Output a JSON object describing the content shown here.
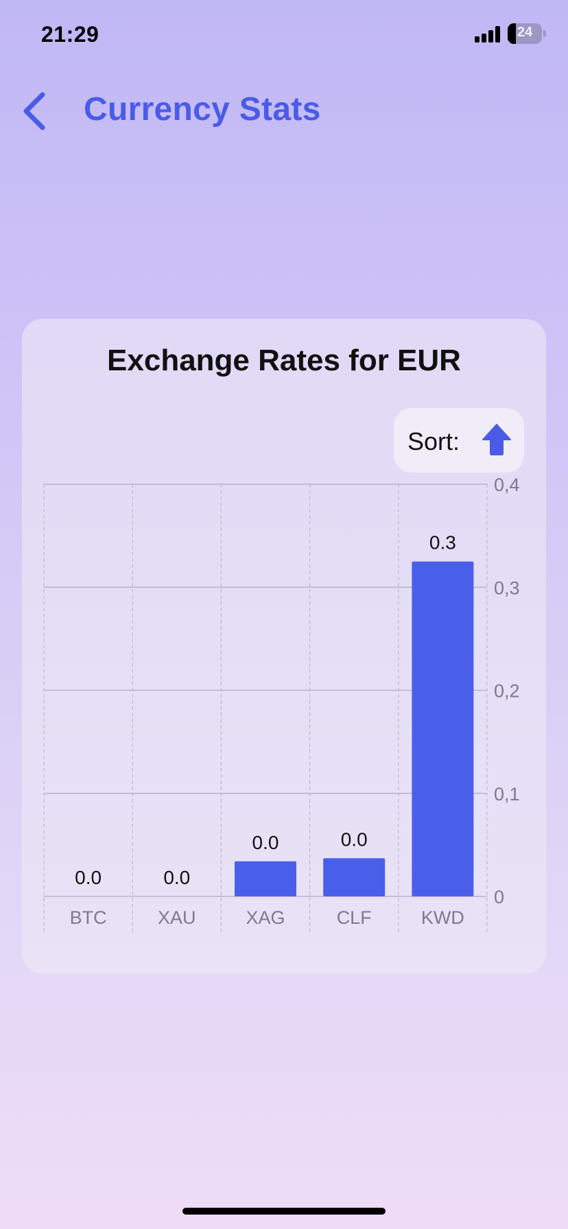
{
  "status_bar": {
    "time": "21:29",
    "battery_level": "24",
    "icons": [
      "signal-icon",
      "battery-icon"
    ]
  },
  "header": {
    "title": "Currency Stats",
    "back_icon": "chevron-left-icon"
  },
  "card": {
    "sort": {
      "label": "Sort:",
      "icon": "arrow-up-icon"
    }
  },
  "colors": {
    "accent": "#4a5be8",
    "bar": "#4a5fe9"
  },
  "chart_data": {
    "type": "bar",
    "title": "Exchange Rates for EUR",
    "categories": [
      "BTC",
      "XAU",
      "XAG",
      "CLF",
      "KWD"
    ],
    "values": [
      0.0,
      0.0,
      0.034,
      0.037,
      0.325
    ],
    "value_labels": [
      "0.0",
      "0.0",
      "0.0",
      "0.0",
      "0.3"
    ],
    "ylim": [
      0,
      0.4
    ],
    "yticks": [
      "0",
      "0,1",
      "0,2",
      "0,3",
      "0,4"
    ],
    "ytick_values": [
      0,
      0.1,
      0.2,
      0.3,
      0.4
    ],
    "y_axis_side": "right",
    "grid": true
  }
}
